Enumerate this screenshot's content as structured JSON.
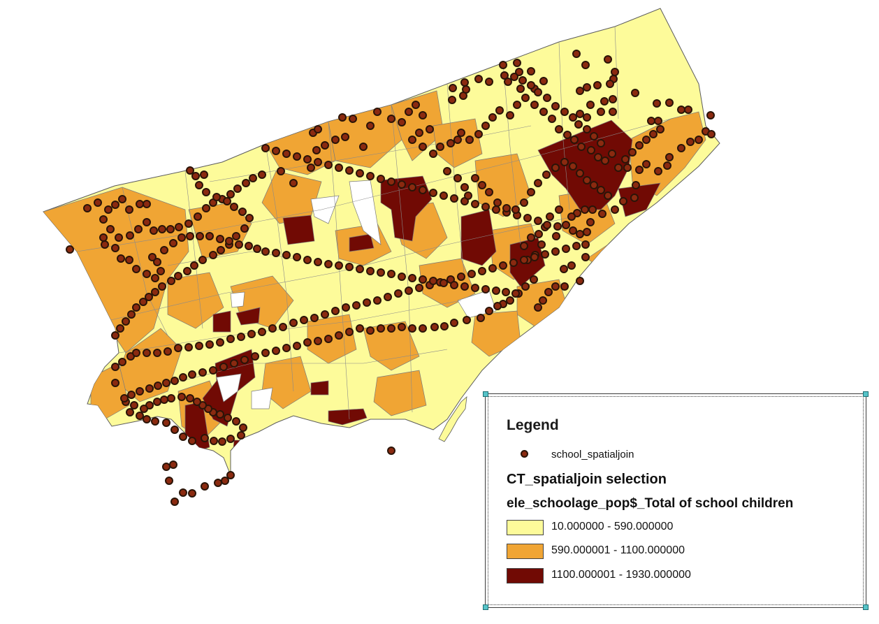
{
  "legend": {
    "title": "Legend",
    "point_layer": "school_spatialjoin",
    "polygon_layer": "CT_spatialjoin selection",
    "field": "ele_schoolage_pop$_Total of school children",
    "classes": [
      {
        "label": "10.000000 - 590.000000",
        "color": "#fdfb9a"
      },
      {
        "label": "590.000001 - 1100.000000",
        "color": "#f0a534"
      },
      {
        "label": "1100.000001 - 1930.000000",
        "color": "#710a04"
      }
    ]
  },
  "colors": {
    "outline": "#5c5c5c",
    "point_fill": "#8b2a10",
    "point_stroke": "#2a1408"
  }
}
